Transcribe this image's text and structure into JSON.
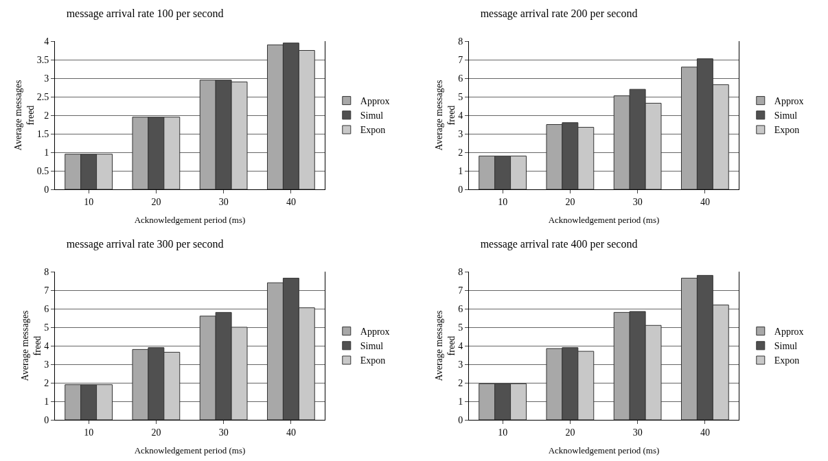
{
  "chart_data": [
    {
      "type": "bar",
      "title": "message arrival rate 100 per second",
      "xlabel": "Acknowledgement period (ms)",
      "ylabel": "Average messages\nfreed",
      "categories": [
        "10",
        "20",
        "30",
        "40"
      ],
      "series": [
        {
          "name": "Approx",
          "color": "#a8a8a8",
          "values": [
            0.95,
            1.95,
            2.95,
            3.9
          ]
        },
        {
          "name": "Simul",
          "color": "#505050",
          "values": [
            0.95,
            1.95,
            2.95,
            3.95
          ]
        },
        {
          "name": "Expon",
          "color": "#c8c8c8",
          "values": [
            0.95,
            1.95,
            2.9,
            3.75
          ]
        }
      ],
      "ylim": [
        0,
        4
      ],
      "yticks": [
        0,
        0.5,
        1,
        1.5,
        2,
        2.5,
        3,
        3.5,
        4
      ],
      "grid": "y",
      "legend": "right"
    },
    {
      "type": "bar",
      "title": "message arrival rate 200 per second",
      "xlabel": "Acknowledgement period (ms)",
      "ylabel": "Average messages\nfreed",
      "categories": [
        "10",
        "20",
        "30",
        "40"
      ],
      "series": [
        {
          "name": "Approx",
          "color": "#a8a8a8",
          "values": [
            1.8,
            3.5,
            5.05,
            6.6
          ]
        },
        {
          "name": "Simul",
          "color": "#505050",
          "values": [
            1.8,
            3.6,
            5.4,
            7.05
          ]
        },
        {
          "name": "Expon",
          "color": "#c8c8c8",
          "values": [
            1.8,
            3.35,
            4.65,
            5.65
          ]
        }
      ],
      "ylim": [
        0,
        8
      ],
      "yticks": [
        0,
        1,
        2,
        3,
        4,
        5,
        6,
        7,
        8
      ],
      "grid": "y",
      "legend": "right"
    },
    {
      "type": "bar",
      "title": "message arrival rate 300 per second",
      "xlabel": "Acknowledgement period (ms)",
      "ylabel": "Average messages\nfreed",
      "categories": [
        "10",
        "20",
        "30",
        "40"
      ],
      "series": [
        {
          "name": "Approx",
          "color": "#a8a8a8",
          "values": [
            1.9,
            3.8,
            5.6,
            7.4
          ]
        },
        {
          "name": "Simul",
          "color": "#505050",
          "values": [
            1.9,
            3.9,
            5.8,
            7.65
          ]
        },
        {
          "name": "Expon",
          "color": "#c8c8c8",
          "values": [
            1.9,
            3.65,
            5.0,
            6.05
          ]
        }
      ],
      "ylim": [
        0,
        8
      ],
      "yticks": [
        0,
        1,
        2,
        3,
        4,
        5,
        6,
        7,
        8
      ],
      "grid": "y",
      "legend": "right"
    },
    {
      "type": "bar",
      "title": "message arrival rate 400 per second",
      "xlabel": "Acknowledgement period (ms)",
      "ylabel": "Average messages\nfreed",
      "categories": [
        "10",
        "20",
        "30",
        "40"
      ],
      "series": [
        {
          "name": "Approx",
          "color": "#a8a8a8",
          "values": [
            1.95,
            3.85,
            5.8,
            7.65
          ]
        },
        {
          "name": "Simul",
          "color": "#505050",
          "values": [
            1.95,
            3.9,
            5.85,
            7.8
          ]
        },
        {
          "name": "Expon",
          "color": "#c8c8c8",
          "values": [
            1.95,
            3.7,
            5.1,
            6.2
          ]
        }
      ],
      "ylim": [
        0,
        8
      ],
      "yticks": [
        0,
        1,
        2,
        3,
        4,
        5,
        6,
        7,
        8
      ],
      "grid": "y",
      "legend": "right"
    }
  ]
}
